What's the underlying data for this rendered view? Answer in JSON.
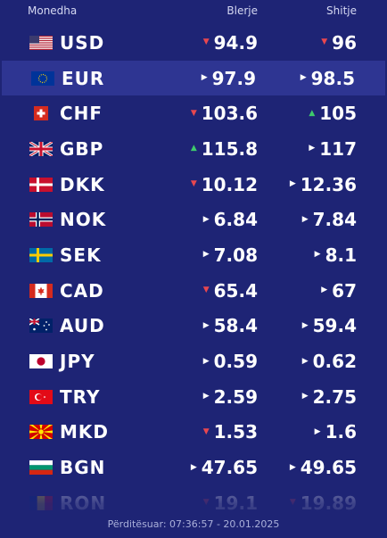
{
  "header": {
    "currency": "Monedha",
    "buy": "Blerje",
    "sell": "Shitje"
  },
  "rates": [
    {
      "code": "USD",
      "flag": "flag-us",
      "buy": "94.9",
      "buy_trend": "down",
      "sell": "96",
      "sell_trend": "down"
    },
    {
      "code": "EUR",
      "flag": "flag-eu",
      "buy": "97.9",
      "buy_trend": "same",
      "sell": "98.5",
      "sell_trend": "same",
      "highlight": true
    },
    {
      "code": "CHF",
      "flag": "flag-ch",
      "buy": "103.6",
      "buy_trend": "down",
      "sell": "105",
      "sell_trend": "up"
    },
    {
      "code": "GBP",
      "flag": "flag-gb",
      "buy": "115.8",
      "buy_trend": "up",
      "sell": "117",
      "sell_trend": "same"
    },
    {
      "code": "DKK",
      "flag": "flag-dk",
      "buy": "10.12",
      "buy_trend": "down",
      "sell": "12.36",
      "sell_trend": "same"
    },
    {
      "code": "NOK",
      "flag": "flag-no",
      "buy": "6.84",
      "buy_trend": "same",
      "sell": "7.84",
      "sell_trend": "same"
    },
    {
      "code": "SEK",
      "flag": "flag-se",
      "buy": "7.08",
      "buy_trend": "same",
      "sell": "8.1",
      "sell_trend": "same"
    },
    {
      "code": "CAD",
      "flag": "flag-ca",
      "buy": "65.4",
      "buy_trend": "down",
      "sell": "67",
      "sell_trend": "same"
    },
    {
      "code": "AUD",
      "flag": "flag-au",
      "buy": "58.4",
      "buy_trend": "same",
      "sell": "59.4",
      "sell_trend": "same"
    },
    {
      "code": "JPY",
      "flag": "flag-jp",
      "buy": "0.59",
      "buy_trend": "same",
      "sell": "0.62",
      "sell_trend": "same"
    },
    {
      "code": "TRY",
      "flag": "flag-tr",
      "buy": "2.59",
      "buy_trend": "same",
      "sell": "2.75",
      "sell_trend": "same"
    },
    {
      "code": "MKD",
      "flag": "flag-mk",
      "buy": "1.53",
      "buy_trend": "down",
      "sell": "1.6",
      "sell_trend": "same"
    },
    {
      "code": "BGN",
      "flag": "flag-bg",
      "buy": "47.65",
      "buy_trend": "same",
      "sell": "49.65",
      "sell_trend": "same"
    },
    {
      "code": "RON",
      "flag": "flag-ro",
      "buy": "19.1",
      "buy_trend": "down",
      "sell": "19.89",
      "sell_trend": "down"
    }
  ],
  "updated": "Përditësuar: 07:36:57 - 20.01.2025",
  "colors": {
    "background": "#1e2475",
    "highlight": "#2e3592",
    "down": "#e8474f",
    "up": "#3ecb6b"
  }
}
